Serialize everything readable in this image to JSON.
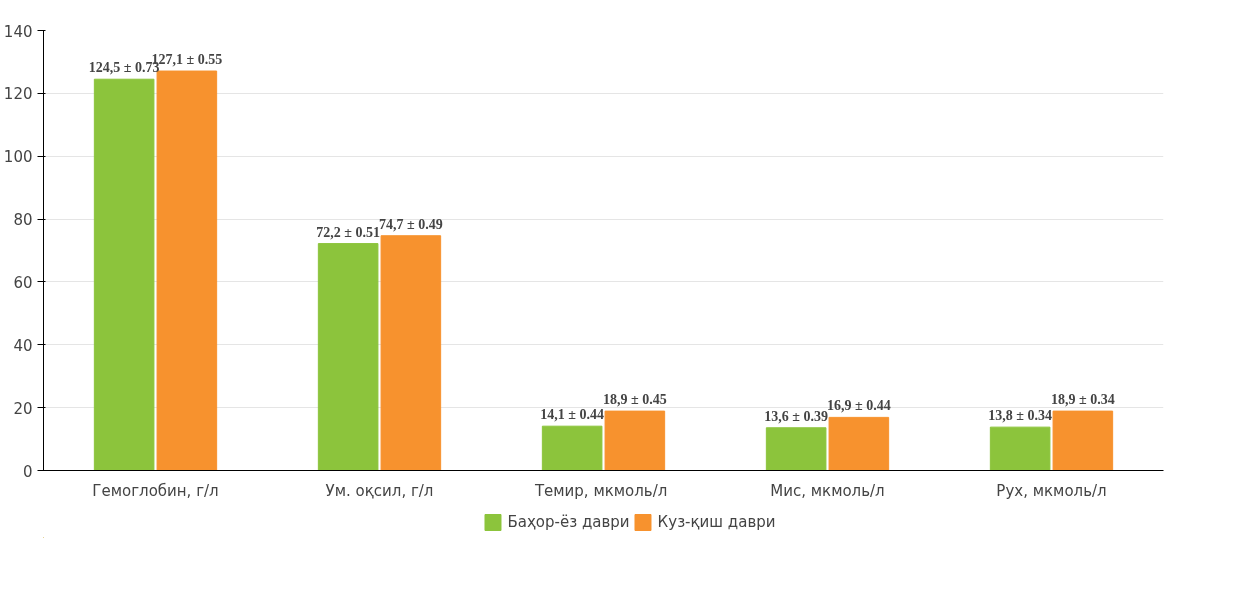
{
  "chart_data": {
    "type": "bar",
    "categories": [
      "Гемоглобин, г/л",
      "Ум. оқсил, г/л",
      "Темир,  мкмоль/л",
      "Мис, мкмоль/л",
      "Рух, мкмоль/л"
    ],
    "series": [
      {
        "name": "Баҳор-ёз даври",
        "color": "#8cc43c",
        "values": [
          124.5,
          72.2,
          14.1,
          13.6,
          13.8
        ],
        "value_labels": [
          "124,5 ± 0.73",
          "72,2 ± 0.51",
          "14,1 ± 0.44",
          "13,6 ± 0.39",
          "13,8 ± 0.34"
        ]
      },
      {
        "name": "Куз-қиш даври",
        "color": "#f7922e",
        "values": [
          127.1,
          74.7,
          18.9,
          16.9,
          18.9
        ],
        "value_labels": [
          "127,1 ± 0.55",
          "74,7 ± 0.49",
          "18,9 ± 0.45",
          "16,9 ± 0.44",
          "18,9 ± 0.34"
        ]
      }
    ],
    "ylim": [
      0,
      140
    ],
    "yticks": [
      0,
      20,
      40,
      60,
      80,
      100,
      120,
      140
    ],
    "grid": "y",
    "legend": "bottom"
  }
}
